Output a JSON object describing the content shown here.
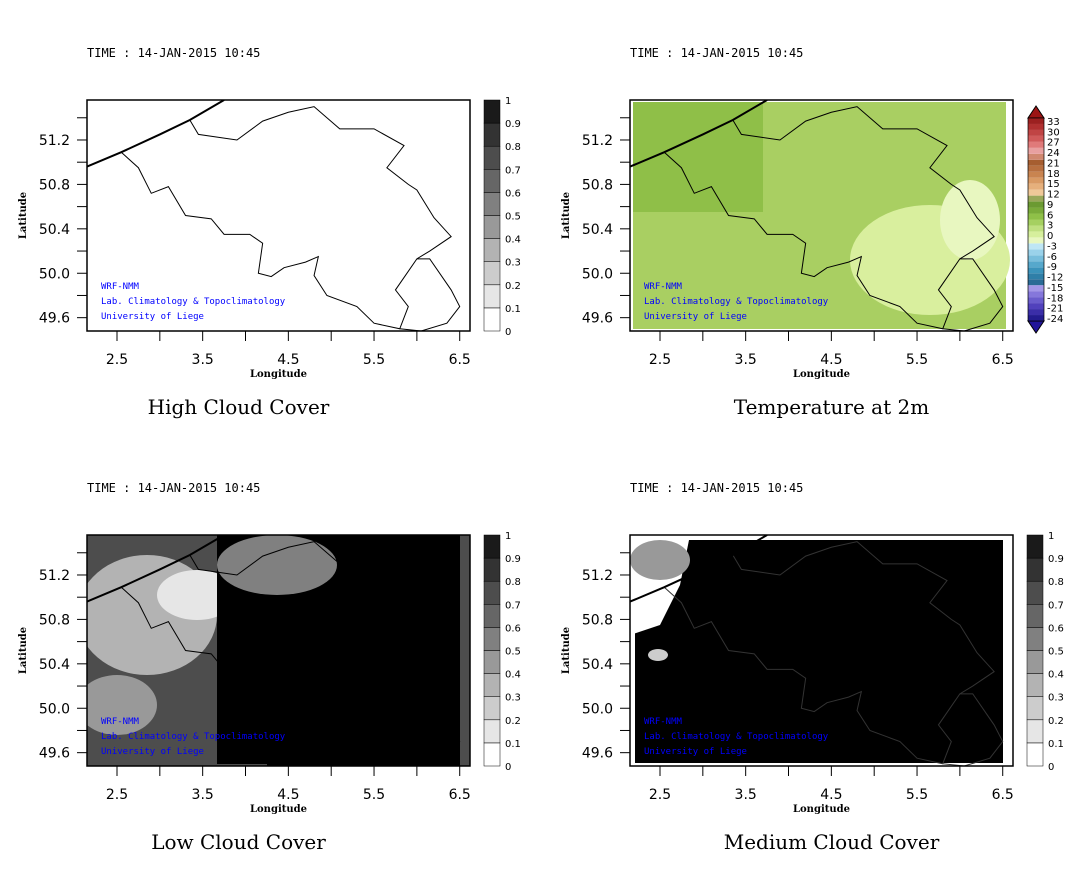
{
  "panels": [
    {
      "time": "TIME : 14-JAN-2015 10:45",
      "title": "High Cloud Cover",
      "field": "high_cloud",
      "colorbar": "cloud"
    },
    {
      "time": "TIME : 14-JAN-2015 10:45",
      "title": "Temperature at 2m",
      "field": "temperature",
      "colorbar": "temp"
    },
    {
      "time": "TIME : 14-JAN-2015 10:45",
      "title": "Low Cloud Cover",
      "field": "low_cloud",
      "colorbar": "cloud"
    },
    {
      "time": "TIME : 14-JAN-2015 10:45",
      "title": "Medium Cloud Cover",
      "field": "medium_cloud",
      "colorbar": "cloud"
    }
  ],
  "axes": {
    "xlabel": "Longitude",
    "ylabel": "Latitude",
    "xticks": [
      "2.5",
      "3.5",
      "4.5",
      "5.5",
      "6.5"
    ],
    "yticks": [
      "51.2",
      "50.8",
      "50.4",
      "50.0",
      "49.6"
    ],
    "xlim": [
      2.15,
      6.62
    ],
    "ylim": [
      49.48,
      51.56
    ]
  },
  "credits": [
    "WRF-NMM",
    "Lab. Climatology & Topoclimatology",
    "University of Liege"
  ],
  "colorbars": {
    "cloud": {
      "labels": [
        "0",
        "0.1",
        "0.2",
        "0.3",
        "0.4",
        "0.5",
        "0.6",
        "0.7",
        "0.8",
        "0.9",
        "1"
      ],
      "colors": [
        "#ffffff",
        "#e6e6e6",
        "#cccccc",
        "#b3b3b3",
        "#999999",
        "#808080",
        "#666666",
        "#4d4d4d",
        "#333333",
        "#1a1a1a"
      ]
    },
    "temp": {
      "labels": [
        "-24",
        "-21",
        "-18",
        "-15",
        "-12",
        "-9",
        "-6",
        "-3",
        "0",
        "3",
        "6",
        "9",
        "12",
        "15",
        "18",
        "21",
        "24",
        "27",
        "30",
        "33"
      ],
      "colors": [
        "#231c8f",
        "#3a2ea8",
        "#5141bc",
        "#6a5ccc",
        "#8577db",
        "#a397e8",
        "#2a6b96",
        "#2f7fa8",
        "#3b93bb",
        "#56a8cc",
        "#78bedc",
        "#9ad2ea",
        "#bfe6f5",
        "#e8f7c0",
        "#d6ef9c",
        "#bfe080",
        "#a5d060",
        "#8fc048",
        "#7aab3a",
        "#6b9a32",
        "#9aa85a",
        "#f0c898",
        "#e6b07c",
        "#d99a64",
        "#c98450",
        "#b87040",
        "#a65e30",
        "#d08870",
        "#e8a0a0",
        "#e07a7a",
        "#d05a5a",
        "#c04444",
        "#b03030",
        "#9c2020"
      ]
    }
  },
  "colors": {
    "credit": "#0000ff",
    "temp_base": "#a9cf62",
    "temp_light": "#d9ef9e",
    "temp_dark": "#8fbf48"
  }
}
